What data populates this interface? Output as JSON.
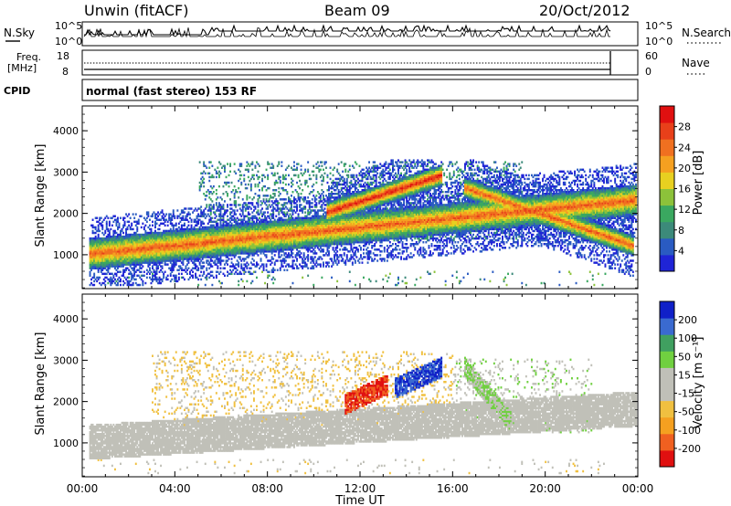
{
  "header": {
    "station": "Unwin (fitACF)",
    "beam": "Beam 09",
    "date": "20/Oct/2012"
  },
  "noise_panel": {
    "left_label": "N.Sky",
    "right_label": "N.Search",
    "ticks_left": [
      "10^5",
      "10^0"
    ],
    "ticks_right": [
      "10^5",
      "10^0"
    ]
  },
  "freq_panel": {
    "left_label_1": "Freq.",
    "left_label_2": "[MHz]",
    "right_label": "Nave",
    "ticks_left": [
      "18",
      "8"
    ],
    "ticks_right": [
      "60",
      "0"
    ]
  },
  "cpid": {
    "label": "CPID",
    "value": "normal (fast stereo) 153 RF"
  },
  "chart_data": [
    {
      "type": "heatmap",
      "title": "",
      "xlabel": "Time UT",
      "ylabel": "Slant Range [km]",
      "xlim_hours": [
        0,
        24
      ],
      "ylim": [
        180,
        4600
      ],
      "yticks": [
        "1000",
        "2000",
        "3000",
        "4000"
      ],
      "colorbar": {
        "label": "Power [dB]",
        "ticks": [
          "28",
          "24",
          "20",
          "16",
          "12",
          "8",
          "4"
        ],
        "range": [
          0,
          30
        ]
      },
      "features": [
        {
          "name": "main band",
          "t_start": 0.3,
          "t_end": 23.9,
          "range_km_start": 1000,
          "range_km_end": 2300,
          "peak_dB": 24
        },
        {
          "name": "upper band",
          "t_start": 10.5,
          "t_end": 15.5,
          "range_km_start": 2000,
          "range_km_end": 2900,
          "peak_dB": 28
        },
        {
          "name": "descending feature",
          "t_start": 16.5,
          "t_end": 23.8,
          "range_km_start": 2600,
          "range_km_end": 1200,
          "peak_dB": 24
        }
      ]
    },
    {
      "type": "heatmap",
      "title": "",
      "xlabel": "Time UT",
      "ylabel": "Slant Range [km]",
      "xlim_hours": [
        0,
        24
      ],
      "ylim": [
        180,
        4600
      ],
      "yticks": [
        "1000",
        "2000",
        "3000",
        "4000"
      ],
      "colorbar": {
        "label": "Velocity [m s⁻¹]",
        "ticks": [
          "200",
          "100",
          "50",
          "15",
          "-15",
          "-50",
          "-100",
          "-200"
        ],
        "range": [
          -250,
          250
        ]
      },
      "features": [
        {
          "name": "ground scatter band",
          "t_start": 0.3,
          "t_end": 23.9,
          "range_km_start": 1000,
          "range_km_end": 1800,
          "velocity": 0
        },
        {
          "name": "negative velocity patch",
          "t_start": 11.3,
          "t_end": 13.2,
          "range_km_start": 1900,
          "range_km_end": 2400,
          "velocity": -200
        },
        {
          "name": "positive velocity patch",
          "t_start": 13.5,
          "t_end": 15.5,
          "range_km_start": 2300,
          "range_km_end": 2800,
          "velocity": 200
        },
        {
          "name": "green descending",
          "t_start": 16.5,
          "t_end": 18.5,
          "range_km_start": 2800,
          "range_km_end": 1500,
          "velocity": 50
        }
      ]
    }
  ],
  "time_axis": {
    "label": "Time UT",
    "ticks": [
      "00:00",
      "04:00",
      "08:00",
      "12:00",
      "16:00",
      "20:00",
      "00:00"
    ]
  },
  "colors": {
    "power": [
      "#1f24d6",
      "#2a5bc2",
      "#3c8a7a",
      "#3aa860",
      "#8cc23a",
      "#e8d020",
      "#f5a020",
      "#f07020",
      "#e8401a",
      "#e01010"
    ],
    "velocity": [
      "#e01010",
      "#f06020",
      "#f5a020",
      "#f0c040",
      "#c0c0b8",
      "#c0c0b8",
      "#70d040",
      "#40a060",
      "#3a6ad0",
      "#1020c8"
    ]
  }
}
